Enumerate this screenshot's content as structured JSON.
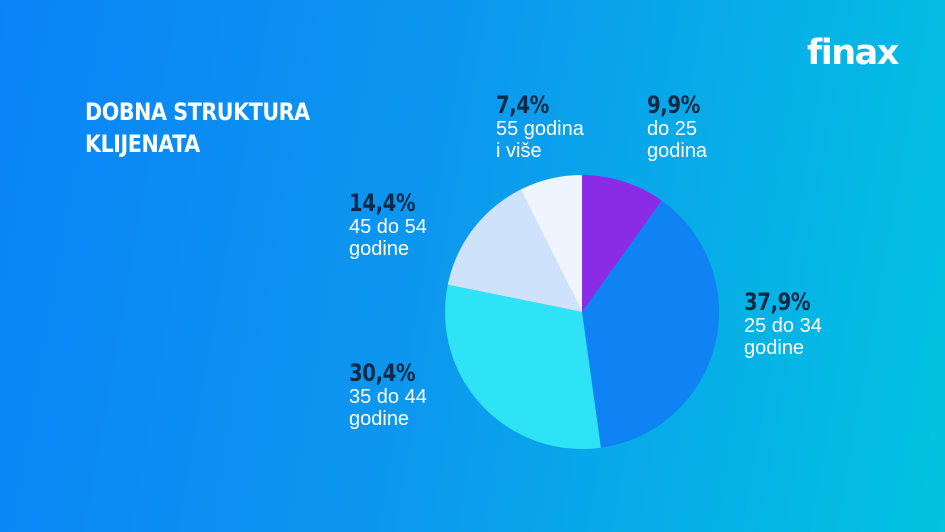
{
  "brand": {
    "logo_text": "finax"
  },
  "chart_data": {
    "type": "pie",
    "title": "DOBNA STRUKTURA KLIJENATA",
    "slices": [
      {
        "pct_label": "9,9%",
        "label": "do 25\ngodina",
        "value": 9.9,
        "color": "#8a2be6"
      },
      {
        "pct_label": "37,9%",
        "label": "25 do 34\ngodine",
        "value": 37.9,
        "color": "#0f82f4"
      },
      {
        "pct_label": "30,4%",
        "label": "35 do 44\ngodine",
        "value": 30.4,
        "color": "#2fe3f7"
      },
      {
        "pct_label": "14,4%",
        "label": "45 do 54\ngodine",
        "value": 14.4,
        "color": "#cfe2fc"
      },
      {
        "pct_label": "7,4%",
        "label": "55 godina\ni više",
        "value": 7.4,
        "color": "#eef5ff"
      }
    ],
    "start_angle_deg": 0,
    "direction": "clockwise"
  }
}
